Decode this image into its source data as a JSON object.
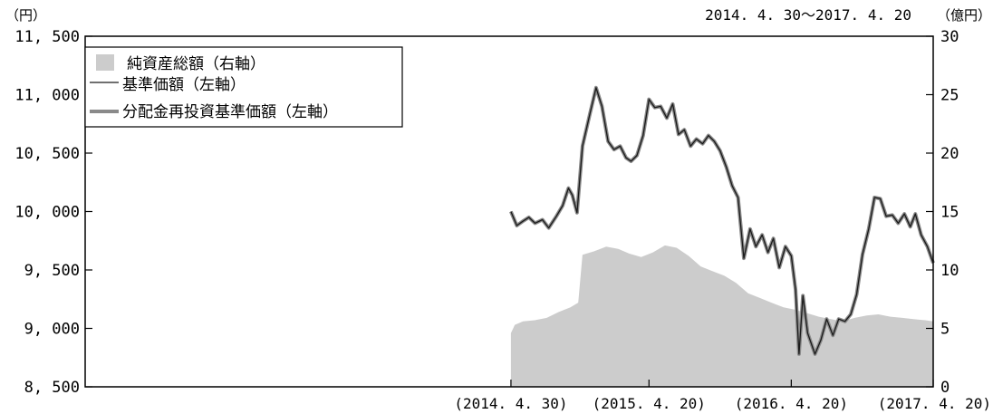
{
  "chart_data": {
    "type": "line",
    "period_note": "2014. 4. 30～2017. 4. 20",
    "left_axis": {
      "unit": "（円）",
      "range": [
        8500,
        11500
      ],
      "ticks": [
        {
          "value": 8500,
          "label": "8, 500"
        },
        {
          "value": 9000,
          "label": "9, 000"
        },
        {
          "value": 9500,
          "label": "9, 500"
        },
        {
          "value": 10000,
          "label": "10, 000"
        },
        {
          "value": 10500,
          "label": "10, 500"
        },
        {
          "value": 11000,
          "label": "11, 000"
        },
        {
          "value": 11500,
          "label": "11, 500"
        }
      ]
    },
    "right_axis": {
      "unit": "（億円）",
      "range": [
        0,
        30
      ],
      "ticks": [
        {
          "value": 0,
          "label": "0"
        },
        {
          "value": 5,
          "label": "5"
        },
        {
          "value": 10,
          "label": "10"
        },
        {
          "value": 15,
          "label": "15"
        },
        {
          "value": 20,
          "label": "20"
        },
        {
          "value": 25,
          "label": "25"
        },
        {
          "value": 30,
          "label": "30"
        }
      ]
    },
    "x_axis": {
      "range": [
        "2011-05-01",
        "2017-04-20"
      ],
      "ticks": [
        {
          "date": "2014-04-30",
          "label": "(2014. 4. 30)"
        },
        {
          "date": "2015-04-20",
          "label": "(2015. 4. 20)"
        },
        {
          "date": "2016-04-20",
          "label": "(2016. 4. 20)"
        },
        {
          "date": "2017-04-20",
          "label": "(2017. 4. 20)"
        }
      ]
    },
    "legend": {
      "position": "top-left",
      "entries": [
        {
          "label": "純資産総額（右軸）",
          "style": "area",
          "color": "#cccccc"
        },
        {
          "label": "基準価額（左軸）",
          "style": "thin-line",
          "color": "#1a1a1a"
        },
        {
          "label": "分配金再投資基準価額（左軸）",
          "style": "thick-line",
          "color": "#8a8a8a"
        }
      ]
    },
    "series": [
      {
        "name": "純資産総額（右軸）",
        "axis": "right",
        "points": [
          [
            "2014-04-30",
            4.6
          ],
          [
            "2014-05-10",
            5.3
          ],
          [
            "2014-05-31",
            5.6
          ],
          [
            "2014-06-30",
            5.7
          ],
          [
            "2014-07-31",
            5.9
          ],
          [
            "2014-08-31",
            6.4
          ],
          [
            "2014-09-30",
            6.8
          ],
          [
            "2014-10-20",
            7.2
          ],
          [
            "2014-10-31",
            11.3
          ],
          [
            "2014-11-30",
            11.6
          ],
          [
            "2014-12-31",
            12.0
          ],
          [
            "2015-01-31",
            11.8
          ],
          [
            "2015-02-28",
            11.4
          ],
          [
            "2015-03-31",
            11.1
          ],
          [
            "2015-04-30",
            11.5
          ],
          [
            "2015-05-31",
            12.1
          ],
          [
            "2015-06-30",
            11.9
          ],
          [
            "2015-07-31",
            11.2
          ],
          [
            "2015-08-31",
            10.3
          ],
          [
            "2015-09-30",
            9.9
          ],
          [
            "2015-10-31",
            9.5
          ],
          [
            "2015-11-30",
            8.9
          ],
          [
            "2015-12-31",
            8.0
          ],
          [
            "2016-01-31",
            7.6
          ],
          [
            "2016-02-29",
            7.2
          ],
          [
            "2016-03-31",
            6.8
          ],
          [
            "2016-04-30",
            6.6
          ],
          [
            "2016-05-31",
            6.3
          ],
          [
            "2016-06-30",
            6.0
          ],
          [
            "2016-07-31",
            5.8
          ],
          [
            "2016-08-31",
            5.6
          ],
          [
            "2016-09-30",
            5.9
          ],
          [
            "2016-10-31",
            6.1
          ],
          [
            "2016-11-30",
            6.2
          ],
          [
            "2016-12-31",
            6.0
          ],
          [
            "2017-01-31",
            5.9
          ],
          [
            "2017-02-28",
            5.8
          ],
          [
            "2017-03-31",
            5.7
          ],
          [
            "2017-04-20",
            5.6
          ]
        ]
      },
      {
        "name": "基準価額（左軸）",
        "axis": "left",
        "points": [
          [
            "2014-04-30",
            10000
          ],
          [
            "2014-05-15",
            9880
          ],
          [
            "2014-06-01",
            9920
          ],
          [
            "2014-06-15",
            9950
          ],
          [
            "2014-07-01",
            9900
          ],
          [
            "2014-07-20",
            9930
          ],
          [
            "2014-08-05",
            9860
          ],
          [
            "2014-08-25",
            9960
          ],
          [
            "2014-09-10",
            10050
          ],
          [
            "2014-09-25",
            10200
          ],
          [
            "2014-10-05",
            10140
          ],
          [
            "2014-10-17",
            9990
          ],
          [
            "2014-10-31",
            10560
          ],
          [
            "2014-11-20",
            10850
          ],
          [
            "2014-12-05",
            11060
          ],
          [
            "2014-12-20",
            10900
          ],
          [
            "2015-01-05",
            10600
          ],
          [
            "2015-01-20",
            10530
          ],
          [
            "2015-02-05",
            10560
          ],
          [
            "2015-02-20",
            10460
          ],
          [
            "2015-03-05",
            10430
          ],
          [
            "2015-03-20",
            10480
          ],
          [
            "2015-04-05",
            10650
          ],
          [
            "2015-04-20",
            10960
          ],
          [
            "2015-05-05",
            10890
          ],
          [
            "2015-05-20",
            10900
          ],
          [
            "2015-06-05",
            10800
          ],
          [
            "2015-06-20",
            10920
          ],
          [
            "2015-07-05",
            10660
          ],
          [
            "2015-07-20",
            10700
          ],
          [
            "2015-08-05",
            10560
          ],
          [
            "2015-08-20",
            10620
          ],
          [
            "2015-09-05",
            10580
          ],
          [
            "2015-09-20",
            10650
          ],
          [
            "2015-10-05",
            10600
          ],
          [
            "2015-10-20",
            10520
          ],
          [
            "2015-11-05",
            10380
          ],
          [
            "2015-11-20",
            10220
          ],
          [
            "2015-12-05",
            10120
          ],
          [
            "2015-12-20",
            9600
          ],
          [
            "2016-01-05",
            9850
          ],
          [
            "2016-01-20",
            9700
          ],
          [
            "2016-02-05",
            9800
          ],
          [
            "2016-02-20",
            9650
          ],
          [
            "2016-03-05",
            9770
          ],
          [
            "2016-03-20",
            9520
          ],
          [
            "2016-04-05",
            9700
          ],
          [
            "2016-04-20",
            9620
          ],
          [
            "2016-05-01",
            9330
          ],
          [
            "2016-05-10",
            8780
          ],
          [
            "2016-05-20",
            9280
          ],
          [
            "2016-06-01",
            8960
          ],
          [
            "2016-06-20",
            8780
          ],
          [
            "2016-07-05",
            8900
          ],
          [
            "2016-07-20",
            9080
          ],
          [
            "2016-08-05",
            8940
          ],
          [
            "2016-08-20",
            9080
          ],
          [
            "2016-09-05",
            9060
          ],
          [
            "2016-09-20",
            9120
          ],
          [
            "2016-10-05",
            9290
          ],
          [
            "2016-10-20",
            9630
          ],
          [
            "2016-11-05",
            9850
          ],
          [
            "2016-11-20",
            10120
          ],
          [
            "2016-12-05",
            10110
          ],
          [
            "2016-12-20",
            9960
          ],
          [
            "2017-01-05",
            9970
          ],
          [
            "2017-01-20",
            9900
          ],
          [
            "2017-02-05",
            9980
          ],
          [
            "2017-02-20",
            9870
          ],
          [
            "2017-03-05",
            9980
          ],
          [
            "2017-03-20",
            9800
          ],
          [
            "2017-04-05",
            9700
          ],
          [
            "2017-04-20",
            9560
          ]
        ]
      },
      {
        "name": "分配金再投資基準価額（左軸）",
        "axis": "left",
        "note": "overlaps 基準価額",
        "points": [
          [
            "2014-04-30",
            10000
          ],
          [
            "2014-05-15",
            9880
          ],
          [
            "2014-06-01",
            9920
          ],
          [
            "2014-06-15",
            9950
          ],
          [
            "2014-07-01",
            9900
          ],
          [
            "2014-07-20",
            9930
          ],
          [
            "2014-08-05",
            9860
          ],
          [
            "2014-08-25",
            9960
          ],
          [
            "2014-09-10",
            10050
          ],
          [
            "2014-09-25",
            10200
          ],
          [
            "2014-10-05",
            10140
          ],
          [
            "2014-10-17",
            9990
          ],
          [
            "2014-10-31",
            10560
          ],
          [
            "2014-11-20",
            10850
          ],
          [
            "2014-12-05",
            11060
          ],
          [
            "2014-12-20",
            10900
          ],
          [
            "2015-01-05",
            10600
          ],
          [
            "2015-01-20",
            10530
          ],
          [
            "2015-02-05",
            10560
          ],
          [
            "2015-02-20",
            10460
          ],
          [
            "2015-03-05",
            10430
          ],
          [
            "2015-03-20",
            10480
          ],
          [
            "2015-04-05",
            10650
          ],
          [
            "2015-04-20",
            10960
          ],
          [
            "2015-05-05",
            10890
          ],
          [
            "2015-05-20",
            10900
          ],
          [
            "2015-06-05",
            10800
          ],
          [
            "2015-06-20",
            10920
          ],
          [
            "2015-07-05",
            10660
          ],
          [
            "2015-07-20",
            10700
          ],
          [
            "2015-08-05",
            10560
          ],
          [
            "2015-08-20",
            10620
          ],
          [
            "2015-09-05",
            10580
          ],
          [
            "2015-09-20",
            10650
          ],
          [
            "2015-10-05",
            10600
          ],
          [
            "2015-10-20",
            10520
          ],
          [
            "2015-11-05",
            10380
          ],
          [
            "2015-11-20",
            10220
          ],
          [
            "2015-12-05",
            10120
          ],
          [
            "2015-12-20",
            9600
          ],
          [
            "2016-01-05",
            9850
          ],
          [
            "2016-01-20",
            9700
          ],
          [
            "2016-02-05",
            9800
          ],
          [
            "2016-02-20",
            9650
          ],
          [
            "2016-03-05",
            9770
          ],
          [
            "2016-03-20",
            9520
          ],
          [
            "2016-04-05",
            9700
          ],
          [
            "2016-04-20",
            9620
          ],
          [
            "2016-05-01",
            9330
          ],
          [
            "2016-05-10",
            8780
          ],
          [
            "2016-05-20",
            9280
          ],
          [
            "2016-06-01",
            8960
          ],
          [
            "2016-06-20",
            8780
          ],
          [
            "2016-07-05",
            8900
          ],
          [
            "2016-07-20",
            9080
          ],
          [
            "2016-08-05",
            8940
          ],
          [
            "2016-08-20",
            9080
          ],
          [
            "2016-09-05",
            9060
          ],
          [
            "2016-09-20",
            9120
          ],
          [
            "2016-10-05",
            9290
          ],
          [
            "2016-10-20",
            9630
          ],
          [
            "2016-11-05",
            9850
          ],
          [
            "2016-11-20",
            10120
          ],
          [
            "2016-12-05",
            10110
          ],
          [
            "2016-12-20",
            9960
          ],
          [
            "2017-01-05",
            9970
          ],
          [
            "2017-01-20",
            9900
          ],
          [
            "2017-02-05",
            9980
          ],
          [
            "2017-02-20",
            9870
          ],
          [
            "2017-03-05",
            9980
          ],
          [
            "2017-03-20",
            9800
          ],
          [
            "2017-04-05",
            9700
          ],
          [
            "2017-04-20",
            9560
          ]
        ]
      }
    ]
  }
}
